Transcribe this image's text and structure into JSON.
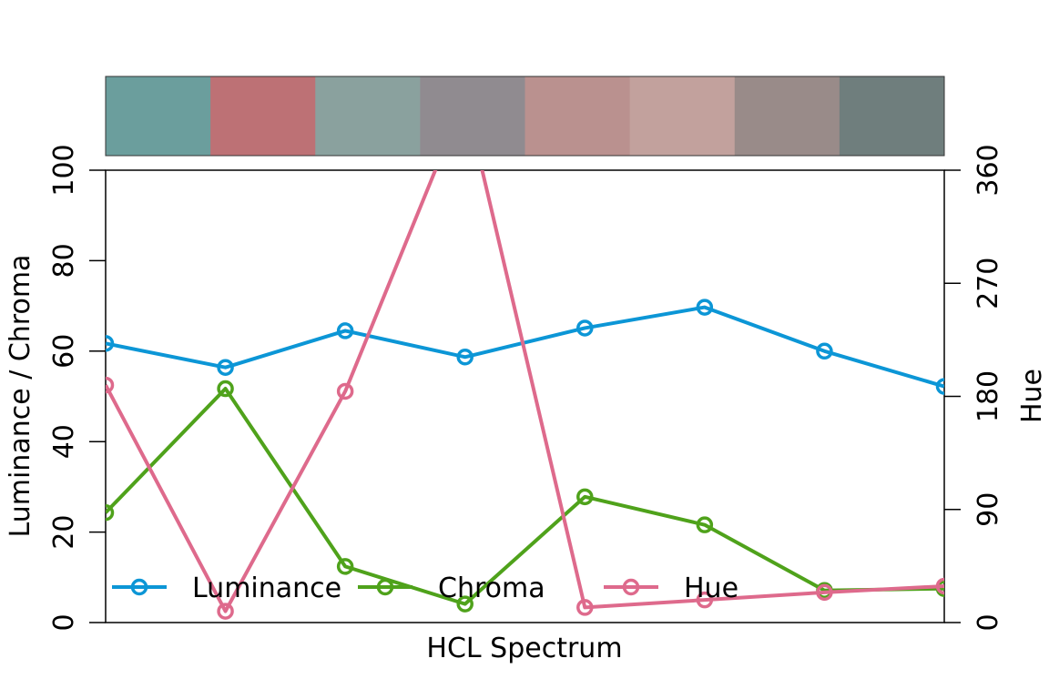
{
  "chart_data": {
    "type": "line",
    "xlabel": "HCL Spectrum",
    "ylabel_left": "Luminance / Chroma",
    "ylabel_right": "Hue",
    "ylim_left": [
      0,
      100
    ],
    "ylim_right": [
      0,
      360
    ],
    "yticks_left": [
      0,
      20,
      40,
      60,
      80,
      100
    ],
    "yticks_right": [
      0,
      90,
      180,
      270,
      360
    ],
    "x": [
      1,
      2,
      3,
      4,
      5,
      6,
      7,
      8
    ],
    "swatches": [
      "#6B9E9D",
      "#BD7175",
      "#8AA19E",
      "#908B90",
      "#BA918F",
      "#C2A19D",
      "#998B89",
      "#6F7E7D"
    ],
    "series": [
      {
        "name": "Luminance",
        "axis": "left",
        "color": "#0C96D6",
        "values": [
          61.7,
          56.4,
          64.5,
          58.7,
          65.1,
          69.7,
          60.0,
          52.2
        ]
      },
      {
        "name": "Chroma",
        "axis": "left",
        "color": "#4FA21B",
        "values": [
          24.3,
          51.7,
          12.4,
          4.1,
          27.8,
          21.6,
          7.1,
          7.5
        ]
      },
      {
        "name": "Hue",
        "axis": "right",
        "color": "#DE6A8C",
        "values": [
          189,
          9,
          184,
          418,
          12,
          18,
          24,
          29
        ]
      }
    ],
    "legend": {
      "position": "bottom",
      "entries": [
        "Luminance",
        "Chroma",
        "Hue"
      ]
    },
    "grid": false
  }
}
